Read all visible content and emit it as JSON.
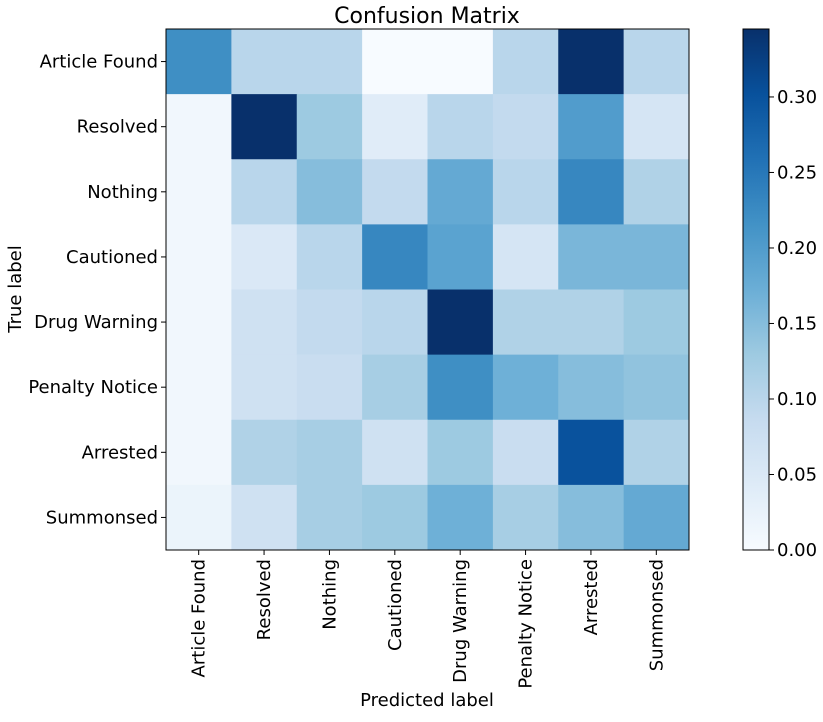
{
  "chart_data": {
    "type": "heatmap",
    "title": "Confusion Matrix",
    "xlabel": "Predicted label",
    "ylabel": "True label",
    "colormap": "Blues",
    "colorbar": {
      "min": 0.0,
      "max": 0.345,
      "ticks": [
        "0.00",
        "0.05",
        "0.10",
        "0.15",
        "0.20",
        "0.25",
        "0.30"
      ],
      "tick_values": [
        0.0,
        0.05,
        0.1,
        0.15,
        0.2,
        0.25,
        0.3
      ]
    },
    "x_categories": [
      "Article Found",
      "Resolved",
      "Nothing",
      "Cautioned",
      "Drug Warning",
      "Penalty Notice",
      "Arrested",
      "Summonsed"
    ],
    "y_categories": [
      "Article Found",
      "Resolved",
      "Nothing",
      "Cautioned",
      "Drug Warning",
      "Penalty Notice",
      "Arrested",
      "Summonsed"
    ],
    "values": [
      [
        0.22,
        0.1,
        0.1,
        0.0,
        0.0,
        0.1,
        0.345,
        0.1
      ],
      [
        0.01,
        0.345,
        0.13,
        0.04,
        0.1,
        0.09,
        0.2,
        0.06
      ],
      [
        0.01,
        0.1,
        0.15,
        0.09,
        0.18,
        0.1,
        0.23,
        0.11
      ],
      [
        0.01,
        0.05,
        0.1,
        0.23,
        0.19,
        0.06,
        0.16,
        0.16
      ],
      [
        0.01,
        0.07,
        0.09,
        0.1,
        0.345,
        0.11,
        0.11,
        0.13
      ],
      [
        0.01,
        0.07,
        0.08,
        0.12,
        0.22,
        0.17,
        0.15,
        0.14
      ],
      [
        0.01,
        0.11,
        0.12,
        0.07,
        0.13,
        0.08,
        0.3,
        0.11
      ],
      [
        0.02,
        0.07,
        0.12,
        0.13,
        0.17,
        0.12,
        0.15,
        0.18
      ]
    ]
  }
}
